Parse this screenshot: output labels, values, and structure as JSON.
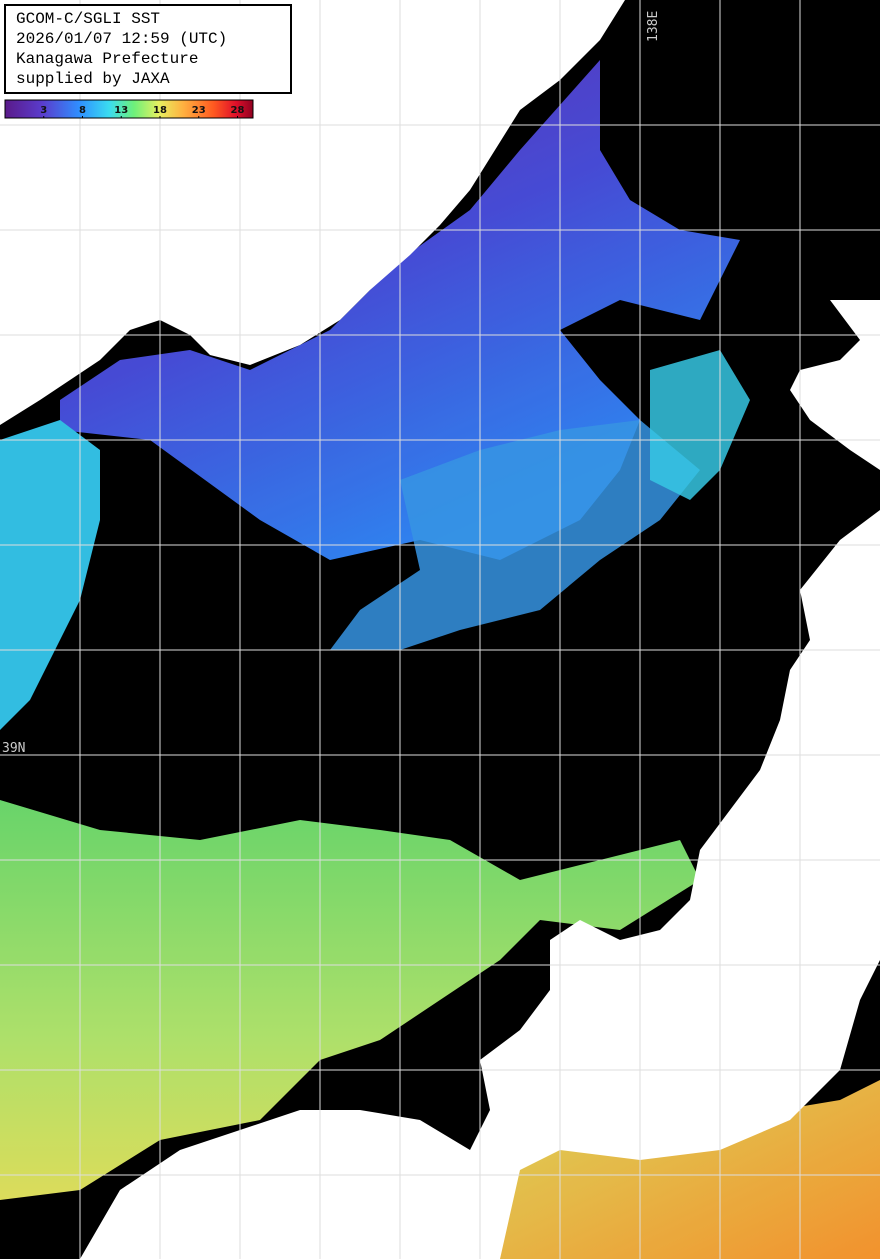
{
  "header": {
    "lines": [
      "GCOM-C/SGLI SST",
      "2026/01/07 12:59 (UTC)",
      "Kanagawa Prefecture",
      "supplied by JAXA"
    ]
  },
  "colorbar": {
    "lim": [
      -2,
      30
    ],
    "ticks": [
      3,
      8,
      13,
      18,
      23,
      28
    ]
  },
  "grid_labels": {
    "longitude": "138E",
    "latitude": "39N"
  }
}
